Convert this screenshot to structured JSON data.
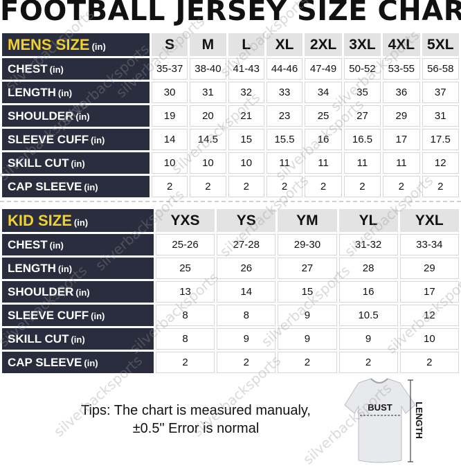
{
  "title": "FOOTBALL JERSEY SIZE CHART",
  "mens": {
    "header_label": "MENS SIZE",
    "unit": "(in)",
    "sizes": [
      "S",
      "M",
      "L",
      "XL",
      "2XL",
      "3XL",
      "4XL",
      "5XL"
    ],
    "rows": [
      {
        "label": "CHEST",
        "unit": "(in)",
        "values": [
          "35-37",
          "38-40",
          "41-43",
          "44-46",
          "47-49",
          "50-52",
          "53-55",
          "56-58"
        ]
      },
      {
        "label": "LENGTH",
        "unit": "(in)",
        "values": [
          "30",
          "31",
          "32",
          "33",
          "34",
          "35",
          "36",
          "37"
        ]
      },
      {
        "label": "SHOULDER",
        "unit": "(in)",
        "values": [
          "19",
          "20",
          "21",
          "23",
          "25",
          "27",
          "29",
          "31"
        ]
      },
      {
        "label": "SLEEVE CUFF",
        "unit": "(in)",
        "values": [
          "14",
          "14.5",
          "15",
          "15.5",
          "16",
          "16.5",
          "17",
          "17.5"
        ]
      },
      {
        "label": "SKILL CUT",
        "unit": "(in)",
        "values": [
          "10",
          "10",
          "10",
          "11",
          "11",
          "11",
          "11",
          "12"
        ]
      },
      {
        "label": "CAP SLEEVE",
        "unit": "(in)",
        "values": [
          "2",
          "2",
          "2",
          "2",
          "2",
          "2",
          "2",
          "2"
        ]
      }
    ]
  },
  "kids": {
    "header_label": "KID SIZE",
    "unit": "(in)",
    "sizes": [
      "YXS",
      "YS",
      "YM",
      "YL",
      "YXL"
    ],
    "rows": [
      {
        "label": "CHEST",
        "unit": "(in)",
        "values": [
          "25-26",
          "27-28",
          "29-30",
          "31-32",
          "33-34"
        ]
      },
      {
        "label": "LENGTH",
        "unit": "(in)",
        "values": [
          "25",
          "26",
          "27",
          "28",
          "29"
        ]
      },
      {
        "label": "SHOULDER",
        "unit": "(in)",
        "values": [
          "13",
          "14",
          "15",
          "16",
          "17"
        ]
      },
      {
        "label": "SLEEVE CUFF",
        "unit": "(in)",
        "values": [
          "8",
          "8",
          "9",
          "10.5",
          "12"
        ]
      },
      {
        "label": "SKILL CUT",
        "unit": "(in)",
        "values": [
          "8",
          "9",
          "9",
          "9",
          "10"
        ]
      },
      {
        "label": "CAP SLEEVE",
        "unit": "(in)",
        "values": [
          "2",
          "2",
          "2",
          "2",
          "2"
        ]
      }
    ]
  },
  "tips": {
    "line1": "Tips: The chart is measured manualy,",
    "line2": "±0.5\" Error is normal"
  },
  "diagram": {
    "bust_label": "BUST",
    "length_label": "LENGTH"
  },
  "watermark": "silverbacksports"
}
